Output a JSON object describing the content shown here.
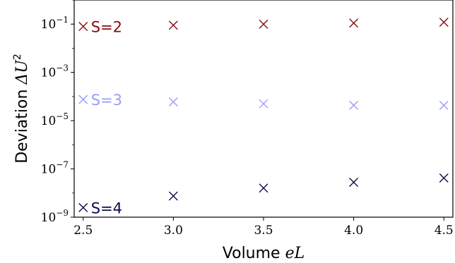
{
  "chart_data": {
    "type": "scatter",
    "title": "",
    "xlabel": {
      "prefix": "Volume ",
      "math": "eL"
    },
    "ylabel": {
      "prefix": "Deviation ",
      "math": "ΔU",
      "sup": "2"
    },
    "xlim": [
      2.45,
      4.55
    ],
    "ylim_log10": [
      -9,
      0
    ],
    "yscale": "log",
    "marker": "x",
    "x_ticks": [
      {
        "value": 2.5,
        "label": "2.5"
      },
      {
        "value": 3.0,
        "label": "3.0"
      },
      {
        "value": 3.5,
        "label": "3.5"
      },
      {
        "value": 4.0,
        "label": "4.0"
      },
      {
        "value": 4.5,
        "label": "4.5"
      }
    ],
    "y_ticks": [
      {
        "log10": -9,
        "base": "10",
        "exp": "−9"
      },
      {
        "log10": -7,
        "base": "10",
        "exp": "−7"
      },
      {
        "log10": -5,
        "base": "10",
        "exp": "−5"
      },
      {
        "log10": -3,
        "base": "10",
        "exp": "−3"
      },
      {
        "log10": -1,
        "base": "10",
        "exp": "−1"
      }
    ],
    "x": [
      2.5,
      3.0,
      3.5,
      4.0,
      4.5
    ],
    "series": [
      {
        "name": "S=2",
        "color": "#8b0a14",
        "values": [
          0.08,
          0.09,
          0.1,
          0.11,
          0.12
        ]
      },
      {
        "name": "S=3",
        "color": "#9a9cf5",
        "values": [
          7.5e-05,
          6e-05,
          5e-05,
          4.3e-05,
          4.3e-05
        ]
      },
      {
        "name": "S=4",
        "color": "#0c0c4f",
        "values": [
          2.5e-09,
          7.5e-09,
          1.6e-08,
          2.8e-08,
          4.2e-08
        ]
      }
    ]
  }
}
